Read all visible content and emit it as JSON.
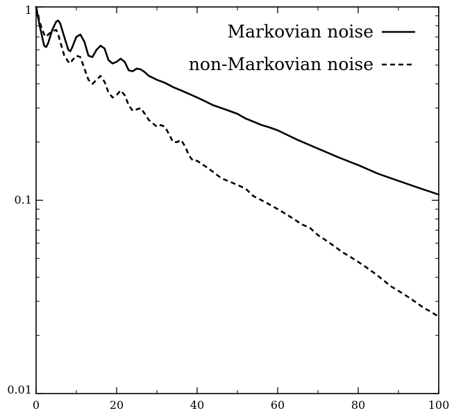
{
  "chart_data": {
    "type": "line",
    "title": "",
    "xlabel": "",
    "ylabel": "",
    "xlim": [
      0,
      100
    ],
    "ylim": [
      0.01,
      1
    ],
    "yscale": "log",
    "grid": false,
    "legend_position": "top-right",
    "x_ticks": [
      0,
      20,
      40,
      60,
      80,
      100
    ],
    "x_tick_labels": [
      "0",
      "20",
      "40",
      "60",
      "80",
      "100"
    ],
    "y_ticks": [
      0.01,
      0.1,
      1
    ],
    "y_tick_labels": [
      "0.01",
      "0.1",
      "1"
    ],
    "series": [
      {
        "name": "Markovian noise",
        "style": "solid",
        "color": "#000000",
        "x": [
          0,
          1,
          2,
          2.5,
          3,
          4,
          5,
          5.5,
          6,
          7,
          8,
          8.5,
          9,
          10,
          11,
          12,
          13,
          14,
          15,
          16,
          17,
          18,
          19,
          20,
          21,
          22,
          23,
          24,
          25,
          26,
          27,
          28,
          29,
          30,
          32,
          34,
          36,
          38,
          40,
          42,
          44,
          46,
          48,
          50,
          52,
          54,
          56,
          58,
          60,
          65,
          70,
          75,
          80,
          85,
          90,
          95,
          100
        ],
        "y": [
          1,
          0.78,
          0.63,
          0.62,
          0.65,
          0.76,
          0.84,
          0.85,
          0.82,
          0.7,
          0.6,
          0.59,
          0.62,
          0.7,
          0.72,
          0.66,
          0.56,
          0.55,
          0.6,
          0.63,
          0.61,
          0.53,
          0.51,
          0.52,
          0.54,
          0.52,
          0.47,
          0.465,
          0.48,
          0.475,
          0.46,
          0.44,
          0.43,
          0.42,
          0.405,
          0.385,
          0.37,
          0.355,
          0.34,
          0.325,
          0.31,
          0.3,
          0.29,
          0.28,
          0.265,
          0.255,
          0.245,
          0.238,
          0.23,
          0.205,
          0.185,
          0.167,
          0.152,
          0.137,
          0.126,
          0.116,
          0.107
        ]
      },
      {
        "name": "non-Markovian noise",
        "style": "dashed",
        "color": "#000000",
        "x": [
          0,
          1,
          2,
          2.5,
          3,
          4,
          5,
          5.5,
          6,
          7,
          8,
          8.5,
          9,
          10,
          11,
          12,
          13,
          14,
          15,
          16,
          17,
          18,
          19,
          20,
          21,
          22,
          23,
          24,
          25,
          26,
          27,
          28,
          29,
          30,
          31,
          32,
          33,
          34,
          35,
          36,
          37,
          38,
          39,
          40,
          42,
          44,
          46,
          48,
          50,
          52,
          54,
          56,
          58,
          60,
          62,
          64,
          66,
          68,
          70,
          72,
          74,
          76,
          78,
          80,
          82,
          84,
          86,
          88,
          90,
          92,
          94,
          96,
          98,
          100
        ],
        "y": [
          1,
          0.82,
          0.72,
          0.7,
          0.72,
          0.75,
          0.76,
          0.72,
          0.66,
          0.56,
          0.52,
          0.51,
          0.53,
          0.56,
          0.55,
          0.48,
          0.42,
          0.4,
          0.42,
          0.44,
          0.41,
          0.36,
          0.34,
          0.35,
          0.37,
          0.35,
          0.31,
          0.29,
          0.295,
          0.3,
          0.28,
          0.26,
          0.25,
          0.24,
          0.245,
          0.24,
          0.22,
          0.2,
          0.2,
          0.205,
          0.19,
          0.17,
          0.16,
          0.16,
          0.15,
          0.14,
          0.13,
          0.125,
          0.12,
          0.115,
          0.105,
          0.1,
          0.095,
          0.09,
          0.085,
          0.08,
          0.075,
          0.072,
          0.066,
          0.062,
          0.058,
          0.054,
          0.051,
          0.048,
          0.045,
          0.042,
          0.039,
          0.036,
          0.034,
          0.032,
          0.03,
          0.028,
          0.0265,
          0.025
        ]
      }
    ]
  }
}
